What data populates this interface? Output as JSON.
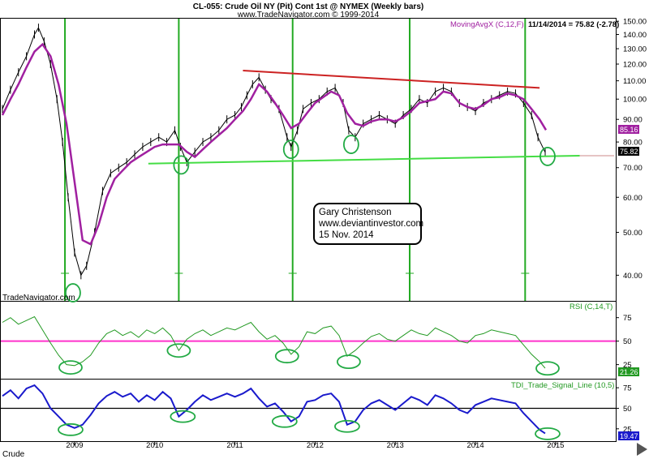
{
  "header": {
    "line1": "CL-055:  Crude Oil NY (Pit) Cont 1st @ NYMEX  (Weekly bars)",
    "line2": "www.TradeNavigator.com © 1999-2014"
  },
  "watermark": "TradeNavigator.com",
  "symbol_label": "Crude",
  "note": {
    "line1": "Gary Christenson",
    "line2": "www.deviantinvestor.com",
    "line3": "15 Nov. 2014"
  },
  "colors": {
    "price": "#000000",
    "moving_avg": "#a020a0",
    "vertical_lines": "#22aa22",
    "trend_top": "#cc2222",
    "trend_bottom": "#44dd44",
    "circles": "#22aa44",
    "rsi_line": "#229922",
    "rsi_mid": "#ff33cc",
    "tdi_line": "#1a1acc"
  },
  "chart_data": [
    {
      "type": "line",
      "panel": "price",
      "indicator_label": "MovingAvgX (C,12,F)",
      "info": "11/14/2014 = 75.82 (-2.78)",
      "y_scale": "log",
      "ylim": [
        35,
        152
      ],
      "y_ticks": [
        40,
        50,
        60,
        70,
        80,
        90,
        100,
        110,
        120,
        130,
        140,
        150
      ],
      "x_ticks": [
        "2009",
        "2010",
        "2011",
        "2012",
        "2013",
        "2014",
        "2015"
      ],
      "xlim": [
        2008.08,
        2015.75
      ],
      "last_close": "75.82",
      "ma_last": "85.16",
      "series": [
        {
          "name": "Crude Oil weekly",
          "x": [
            2008.1,
            2008.2,
            2008.3,
            2008.4,
            2008.5,
            2008.55,
            2008.62,
            2008.7,
            2008.78,
            2008.85,
            2008.92,
            2009.0,
            2009.08,
            2009.15,
            2009.25,
            2009.35,
            2009.45,
            2009.55,
            2009.65,
            2009.75,
            2009.85,
            2009.95,
            2010.05,
            2010.15,
            2010.25,
            2010.32,
            2010.4,
            2010.5,
            2010.6,
            2010.7,
            2010.8,
            2010.9,
            2011.0,
            2011.08,
            2011.15,
            2011.22,
            2011.3,
            2011.38,
            2011.45,
            2011.55,
            2011.65,
            2011.7,
            2011.78,
            2011.85,
            2011.95,
            2012.05,
            2012.15,
            2012.25,
            2012.35,
            2012.42,
            2012.5,
            2012.6,
            2012.7,
            2012.8,
            2012.9,
            2013.0,
            2013.1,
            2013.2,
            2013.3,
            2013.4,
            2013.5,
            2013.6,
            2013.7,
            2013.8,
            2013.9,
            2014.0,
            2014.1,
            2014.2,
            2014.3,
            2014.4,
            2014.5,
            2014.6,
            2014.7,
            2014.78,
            2014.87
          ],
          "y": [
            95,
            105,
            115,
            125,
            140,
            145,
            135,
            120,
            100,
            80,
            60,
            45,
            40,
            42,
            50,
            62,
            68,
            70,
            72,
            75,
            78,
            80,
            82,
            80,
            85,
            78,
            72,
            76,
            80,
            82,
            85,
            90,
            92,
            96,
            102,
            108,
            112,
            105,
            100,
            95,
            82,
            78,
            85,
            95,
            98,
            100,
            104,
            106,
            98,
            85,
            82,
            88,
            90,
            92,
            90,
            88,
            92,
            95,
            100,
            98,
            104,
            106,
            104,
            98,
            96,
            94,
            98,
            100,
            102,
            104,
            103,
            98,
            92,
            82,
            75.82
          ]
        },
        {
          "name": "MovingAvgX (C,12,F)",
          "x": [
            2008.1,
            2008.2,
            2008.3,
            2008.4,
            2008.5,
            2008.6,
            2008.7,
            2008.8,
            2008.9,
            2009.0,
            2009.1,
            2009.2,
            2009.3,
            2009.4,
            2009.5,
            2009.6,
            2009.7,
            2009.8,
            2009.9,
            2010.0,
            2010.1,
            2010.2,
            2010.3,
            2010.4,
            2010.5,
            2010.6,
            2010.7,
            2010.8,
            2010.9,
            2011.0,
            2011.1,
            2011.2,
            2011.3,
            2011.4,
            2011.5,
            2011.6,
            2011.7,
            2011.8,
            2011.9,
            2012.0,
            2012.1,
            2012.2,
            2012.3,
            2012.4,
            2012.5,
            2012.6,
            2012.7,
            2012.8,
            2012.9,
            2013.0,
            2013.1,
            2013.2,
            2013.3,
            2013.4,
            2013.5,
            2013.6,
            2013.7,
            2013.8,
            2013.9,
            2014.0,
            2014.1,
            2014.2,
            2014.3,
            2014.4,
            2014.5,
            2014.6,
            2014.7,
            2014.8,
            2014.88
          ],
          "y": [
            92,
            100,
            108,
            118,
            128,
            133,
            125,
            108,
            88,
            65,
            48,
            47,
            52,
            60,
            66,
            69,
            72,
            74,
            76,
            78,
            79,
            79,
            79,
            76,
            74,
            77,
            80,
            83,
            86,
            90,
            94,
            100,
            108,
            104,
            98,
            92,
            86,
            88,
            93,
            98,
            101,
            104,
            102,
            93,
            88,
            87,
            89,
            90,
            90,
            89,
            91,
            94,
            98,
            99,
            100,
            104,
            103,
            98,
            96,
            95,
            97,
            100,
            101,
            103,
            102,
            100,
            95,
            90,
            85.16
          ]
        }
      ],
      "trend_lines": [
        {
          "name": "resistance",
          "from": [
            2011.1,
            116
          ],
          "to": [
            2014.8,
            106
          ]
        },
        {
          "name": "support",
          "from": [
            2009.92,
            71.5
          ],
          "to": [
            2015.3,
            74.5
          ]
        }
      ],
      "circled_lows": [
        [
          2008.98,
          36.5
        ],
        [
          2010.33,
          71
        ],
        [
          2011.7,
          77
        ],
        [
          2012.45,
          79
        ],
        [
          2014.9,
          74.2
        ]
      ]
    },
    {
      "type": "line",
      "panel": "rsi",
      "indicator_label": "RSI (C,14,T)",
      "ylim": [
        10,
        92
      ],
      "y_ticks": [
        25,
        50,
        75
      ],
      "mid_line": 50,
      "last_value": "21.26",
      "series": [
        {
          "name": "RSI (C,14,T)",
          "x": [
            2008.1,
            2008.2,
            2008.3,
            2008.4,
            2008.5,
            2008.6,
            2008.7,
            2008.8,
            2008.9,
            2009.0,
            2009.1,
            2009.2,
            2009.3,
            2009.4,
            2009.5,
            2009.6,
            2009.7,
            2009.8,
            2009.9,
            2010.0,
            2010.1,
            2010.2,
            2010.3,
            2010.4,
            2010.5,
            2010.6,
            2010.7,
            2010.8,
            2010.9,
            2011.0,
            2011.1,
            2011.2,
            2011.3,
            2011.4,
            2011.5,
            2011.6,
            2011.7,
            2011.8,
            2011.9,
            2012.0,
            2012.1,
            2012.2,
            2012.3,
            2012.4,
            2012.5,
            2012.6,
            2012.7,
            2012.8,
            2012.9,
            2013.0,
            2013.1,
            2013.2,
            2013.3,
            2013.4,
            2013.5,
            2013.6,
            2013.7,
            2013.8,
            2013.9,
            2014.0,
            2014.1,
            2014.2,
            2014.3,
            2014.4,
            2014.5,
            2014.6,
            2014.7,
            2014.8,
            2014.87
          ],
          "y": [
            70,
            75,
            68,
            72,
            76,
            62,
            48,
            35,
            25,
            24,
            28,
            35,
            48,
            58,
            62,
            56,
            60,
            54,
            62,
            58,
            64,
            56,
            40,
            52,
            58,
            62,
            56,
            60,
            64,
            62,
            66,
            70,
            60,
            52,
            56,
            48,
            36,
            44,
            60,
            58,
            64,
            66,
            56,
            34,
            40,
            48,
            55,
            58,
            52,
            50,
            56,
            62,
            58,
            56,
            64,
            60,
            56,
            50,
            48,
            56,
            58,
            62,
            60,
            58,
            56,
            46,
            36,
            28,
            21.26
          ]
        }
      ],
      "circled_lows": [
        [
          2008.95,
          22
        ],
        [
          2010.3,
          40
        ],
        [
          2011.65,
          34
        ],
        [
          2012.42,
          28
        ],
        [
          2014.9,
          21
        ]
      ]
    },
    {
      "type": "line",
      "panel": "tdi",
      "indicator_label": "TDI_Trade_Signal_Line (10,5)",
      "ylim": [
        10,
        85
      ],
      "y_ticks": [
        25,
        50,
        75
      ],
      "mid_line": 50,
      "last_value": "19.47",
      "x_ticks": [
        "2009",
        "2010",
        "2011",
        "2012",
        "2013",
        "2014",
        "2015"
      ],
      "series": [
        {
          "name": "TDI_Trade_Signal_Line (10,5)",
          "x": [
            2008.1,
            2008.2,
            2008.3,
            2008.4,
            2008.5,
            2008.6,
            2008.7,
            2008.8,
            2008.9,
            2009.0,
            2009.1,
            2009.2,
            2009.3,
            2009.4,
            2009.5,
            2009.6,
            2009.7,
            2009.8,
            2009.9,
            2010.0,
            2010.1,
            2010.2,
            2010.3,
            2010.4,
            2010.5,
            2010.6,
            2010.7,
            2010.8,
            2010.9,
            2011.0,
            2011.1,
            2011.2,
            2011.3,
            2011.4,
            2011.5,
            2011.6,
            2011.7,
            2011.8,
            2011.9,
            2012.0,
            2012.1,
            2012.2,
            2012.3,
            2012.4,
            2012.5,
            2012.6,
            2012.7,
            2012.8,
            2012.9,
            2013.0,
            2013.1,
            2013.2,
            2013.3,
            2013.4,
            2013.5,
            2013.6,
            2013.7,
            2013.8,
            2013.9,
            2014.0,
            2014.1,
            2014.2,
            2014.3,
            2014.4,
            2014.5,
            2014.6,
            2014.7,
            2014.8,
            2014.87
          ],
          "y": [
            65,
            72,
            62,
            74,
            78,
            68,
            50,
            40,
            30,
            26,
            30,
            42,
            56,
            65,
            70,
            64,
            68,
            58,
            66,
            60,
            70,
            62,
            40,
            48,
            58,
            66,
            60,
            64,
            68,
            64,
            68,
            74,
            62,
            52,
            56,
            46,
            34,
            40,
            58,
            60,
            66,
            68,
            58,
            30,
            34,
            48,
            56,
            60,
            54,
            48,
            56,
            64,
            60,
            54,
            66,
            62,
            56,
            48,
            44,
            54,
            58,
            62,
            60,
            58,
            56,
            44,
            34,
            24,
            19.47
          ]
        },
        {
          "name": "mid",
          "x": [
            2008.08,
            2015.75
          ],
          "y": [
            50,
            50
          ]
        }
      ],
      "circled_lows": [
        [
          2008.95,
          24
        ],
        [
          2010.35,
          40
        ],
        [
          2011.62,
          34
        ],
        [
          2012.4,
          28
        ],
        [
          2014.9,
          19
        ]
      ]
    }
  ]
}
